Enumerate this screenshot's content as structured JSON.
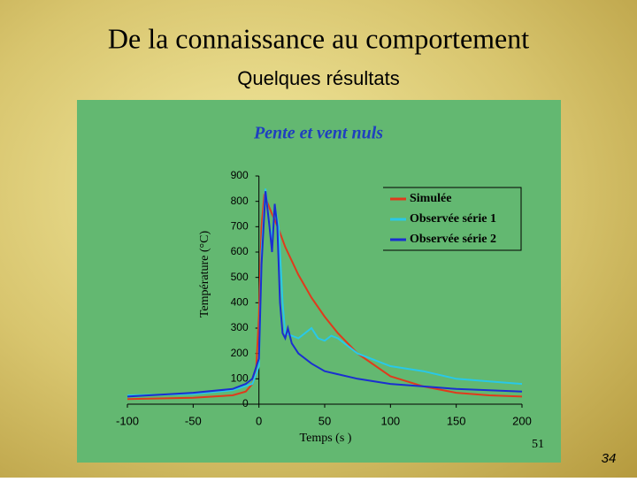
{
  "slide": {
    "title": "De la connaissance au comportement",
    "subtitle": "Quelques résultats",
    "page_number": "34"
  },
  "chart_data": {
    "type": "line",
    "title": "Pente et vent nuls",
    "xlabel": "Temps (s )",
    "ylabel": "Température (°C)",
    "note": "51",
    "xlim": [
      -100,
      200
    ],
    "xticks": [
      -100,
      -50,
      0,
      50,
      100,
      150,
      200
    ],
    "ylim": [
      0,
      900
    ],
    "yticks": [
      0,
      100,
      200,
      300,
      400,
      500,
      600,
      700,
      800,
      900
    ],
    "grid": false,
    "legend": "upper right",
    "series": [
      {
        "name": "Simulée",
        "color": "#e03a1c",
        "x": [
          -100,
          -50,
          -20,
          -10,
          -5,
          -2,
          0,
          2,
          4,
          6,
          10,
          15,
          20,
          30,
          40,
          50,
          60,
          75,
          100,
          125,
          150,
          175,
          200
        ],
        "values": [
          20,
          25,
          35,
          50,
          80,
          150,
          350,
          700,
          820,
          800,
          750,
          690,
          620,
          510,
          420,
          345,
          280,
          200,
          110,
          70,
          45,
          35,
          30
        ]
      },
      {
        "name": "Observée série 1",
        "color": "#29c8e8",
        "x": [
          -100,
          -50,
          -20,
          -5,
          0,
          2,
          5,
          8,
          10,
          12,
          15,
          18,
          20,
          30,
          40,
          45,
          50,
          55,
          60,
          75,
          90,
          100,
          125,
          150,
          175,
          200
        ],
        "values": [
          35,
          40,
          55,
          80,
          150,
          600,
          850,
          700,
          650,
          780,
          700,
          400,
          280,
          260,
          300,
          260,
          250,
          270,
          260,
          200,
          170,
          150,
          130,
          100,
          90,
          80
        ]
      },
      {
        "name": "Observée série 2",
        "color": "#1a2fd0",
        "x": [
          -100,
          -50,
          -20,
          -10,
          -5,
          0,
          2,
          5,
          8,
          10,
          12,
          14,
          16,
          18,
          20,
          22,
          25,
          30,
          40,
          50,
          75,
          100,
          125,
          150,
          175,
          200
        ],
        "values": [
          30,
          45,
          60,
          80,
          100,
          180,
          550,
          840,
          700,
          600,
          790,
          700,
          400,
          280,
          260,
          300,
          240,
          200,
          160,
          130,
          100,
          80,
          70,
          60,
          55,
          50
        ]
      }
    ]
  }
}
